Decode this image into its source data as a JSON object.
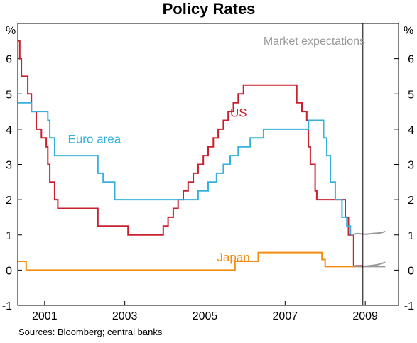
{
  "chart_data": {
    "type": "line",
    "title": "Policy Rates",
    "unit_left": "%",
    "unit_right": "%",
    "source": "Sources: Bloomberg; central banks",
    "ylim": [
      -1,
      7
    ],
    "y_ticks": [
      -1,
      0,
      1,
      2,
      3,
      4,
      5,
      6
    ],
    "y_tick_labels": [
      "-1",
      "0",
      "1",
      "2",
      "3",
      "4",
      "5",
      "6"
    ],
    "xlim": [
      2000.33,
      2009.83
    ],
    "x_ticks": [
      2001,
      2003,
      2005,
      2007,
      2009
    ],
    "x_tick_labels": [
      "2001",
      "2003",
      "2005",
      "2007",
      "2009"
    ],
    "divider_x": 2008.94,
    "grid": false,
    "annotation_market": "Market expectations",
    "colors": {
      "us": "#c8202e",
      "euro": "#36b1dc",
      "japan": "#f28c12",
      "expectations": "#999999",
      "axis": "#000000"
    },
    "series": [
      {
        "name": "US",
        "key": "us",
        "step": true,
        "points": [
          [
            2000.33,
            6.5
          ],
          [
            2000.38,
            6.0
          ],
          [
            2000.42,
            5.5
          ],
          [
            2000.58,
            5.0
          ],
          [
            2000.67,
            4.5
          ],
          [
            2000.79,
            4.0
          ],
          [
            2000.92,
            3.75
          ],
          [
            2001.04,
            3.5
          ],
          [
            2001.08,
            3.0
          ],
          [
            2001.13,
            2.5
          ],
          [
            2001.25,
            2.0
          ],
          [
            2001.33,
            1.75
          ],
          [
            2002.33,
            1.25
          ],
          [
            2003.08,
            1.0
          ],
          [
            2003.96,
            1.25
          ],
          [
            2004.08,
            1.5
          ],
          [
            2004.21,
            1.75
          ],
          [
            2004.33,
            2.0
          ],
          [
            2004.46,
            2.25
          ],
          [
            2004.58,
            2.5
          ],
          [
            2004.71,
            2.75
          ],
          [
            2004.83,
            3.0
          ],
          [
            2004.96,
            3.25
          ],
          [
            2005.08,
            3.5
          ],
          [
            2005.21,
            3.75
          ],
          [
            2005.33,
            4.0
          ],
          [
            2005.46,
            4.25
          ],
          [
            2005.58,
            4.5
          ],
          [
            2005.71,
            4.75
          ],
          [
            2005.83,
            5.0
          ],
          [
            2005.96,
            5.25
          ],
          [
            2007.29,
            4.75
          ],
          [
            2007.42,
            4.5
          ],
          [
            2007.54,
            4.25
          ],
          [
            2007.58,
            3.5
          ],
          [
            2007.63,
            3.0
          ],
          [
            2007.75,
            2.25
          ],
          [
            2007.79,
            2.0
          ],
          [
            2008.5,
            1.5
          ],
          [
            2008.58,
            1.0
          ],
          [
            2008.71,
            0.12
          ],
          [
            2008.94,
            0.12
          ]
        ]
      },
      {
        "name": "Euro area",
        "key": "euro",
        "step": true,
        "points": [
          [
            2000.33,
            4.75
          ],
          [
            2000.67,
            4.5
          ],
          [
            2001.08,
            4.25
          ],
          [
            2001.13,
            3.75
          ],
          [
            2001.25,
            3.25
          ],
          [
            2002.33,
            2.75
          ],
          [
            2002.46,
            2.5
          ],
          [
            2002.75,
            2.0
          ],
          [
            2004.83,
            2.25
          ],
          [
            2005.08,
            2.5
          ],
          [
            2005.29,
            2.75
          ],
          [
            2005.46,
            3.0
          ],
          [
            2005.63,
            3.25
          ],
          [
            2005.83,
            3.5
          ],
          [
            2006.13,
            3.75
          ],
          [
            2006.46,
            4.0
          ],
          [
            2007.58,
            4.25
          ],
          [
            2007.96,
            3.75
          ],
          [
            2008.04,
            3.25
          ],
          [
            2008.13,
            2.5
          ],
          [
            2008.25,
            2.0
          ],
          [
            2008.42,
            1.5
          ],
          [
            2008.54,
            1.25
          ],
          [
            2008.63,
            1.0
          ]
        ]
      },
      {
        "name": "Japan",
        "key": "japan",
        "step": true,
        "points": [
          [
            2000.33,
            0.25
          ],
          [
            2000.54,
            0.0
          ],
          [
            2005.75,
            0.25
          ],
          [
            2006.33,
            0.5
          ],
          [
            2007.92,
            0.3
          ],
          [
            2008.0,
            0.1
          ],
          [
            2008.94,
            0.1
          ]
        ]
      },
      {
        "name": "",
        "key": "expectations",
        "step": false,
        "points": [
          [
            2008.65,
            1.0
          ],
          [
            2008.8,
            1.04
          ],
          [
            2009.0,
            1.02
          ],
          [
            2009.2,
            1.04
          ],
          [
            2009.4,
            1.06
          ],
          [
            2009.5,
            1.1
          ]
        ]
      },
      {
        "name": "",
        "key": "expectations",
        "step": false,
        "points": [
          [
            2008.7,
            0.12
          ],
          [
            2008.9,
            0.1
          ],
          [
            2009.1,
            0.12
          ],
          [
            2009.3,
            0.15
          ],
          [
            2009.5,
            0.22
          ]
        ]
      },
      {
        "name": "",
        "key": "expectations",
        "step": false,
        "points": [
          [
            2008.7,
            0.1
          ],
          [
            2008.9,
            0.1
          ],
          [
            2009.2,
            0.1
          ],
          [
            2009.5,
            0.1
          ]
        ]
      }
    ],
    "series_labels": [
      {
        "text": "US",
        "key": "us",
        "x": 2005.63,
        "y": 4.35
      },
      {
        "text": "Euro area",
        "key": "euro",
        "x": 2001.58,
        "y": 3.6
      },
      {
        "text": "Japan",
        "key": "japan",
        "x": 2005.3,
        "y": 0.25
      }
    ]
  }
}
